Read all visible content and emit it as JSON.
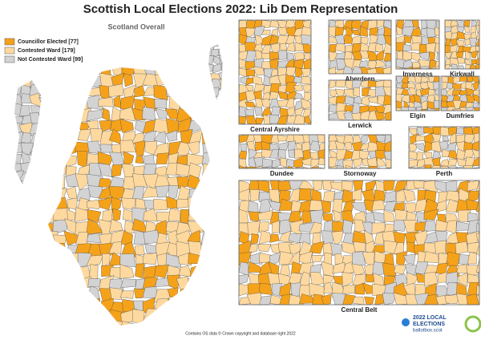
{
  "header": {
    "title": "Scottish Local Elections 2022: Lib Dem Representation"
  },
  "main_map": {
    "label": "Scotland Overall"
  },
  "legend": [
    {
      "label": "Councillor Elected [77]",
      "color": "#f5a21b"
    },
    {
      "label": "Contested Ward [179]",
      "color": "#fdd9a0"
    },
    {
      "label": "Not Contested Ward [99]",
      "color": "#d3d3d3"
    }
  ],
  "insets": [
    {
      "label": "Central Ayrshire"
    },
    {
      "label": "Aberdeen"
    },
    {
      "label": "Inverness"
    },
    {
      "label": "Kirkwall"
    },
    {
      "label": "Lerwick"
    },
    {
      "label": "Elgin"
    },
    {
      "label": "Dumfries"
    },
    {
      "label": "Dundee"
    },
    {
      "label": "Stornoway"
    },
    {
      "label": "Perth"
    },
    {
      "label": "Central Belt"
    }
  ],
  "footer": {
    "credit": "Contains OS data © Crown copyright and database right 2022"
  },
  "logo": {
    "line1": "2022 LOCAL",
    "line2": "ELECTIONS",
    "line3": "ballotbox.scot"
  }
}
